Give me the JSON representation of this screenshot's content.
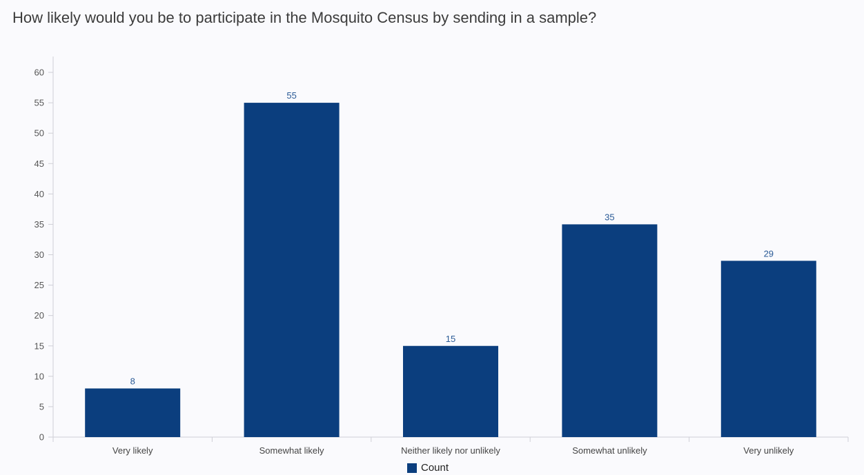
{
  "colors": {
    "bar": "#0b3e7e",
    "data_label": "#2a5a96",
    "axis": "#cfcfd6",
    "background": "#fafafd"
  },
  "chart_data": {
    "type": "bar",
    "title": "How likely would you be to participate in the Mosquito Census by sending in a sample?",
    "categories": [
      "Very likely",
      "Somewhat likely",
      "Neither likely nor unlikely",
      "Somewhat unlikely",
      "Very unlikely"
    ],
    "series": [
      {
        "name": "Count",
        "values": [
          8,
          55,
          15,
          35,
          29
        ]
      }
    ],
    "ylim": [
      0,
      60
    ],
    "yticks": [
      0,
      5,
      10,
      15,
      20,
      25,
      30,
      35,
      40,
      45,
      50,
      55,
      60
    ],
    "xlabel": "",
    "ylabel": "",
    "grid": false,
    "legend_position": "bottom-center"
  }
}
